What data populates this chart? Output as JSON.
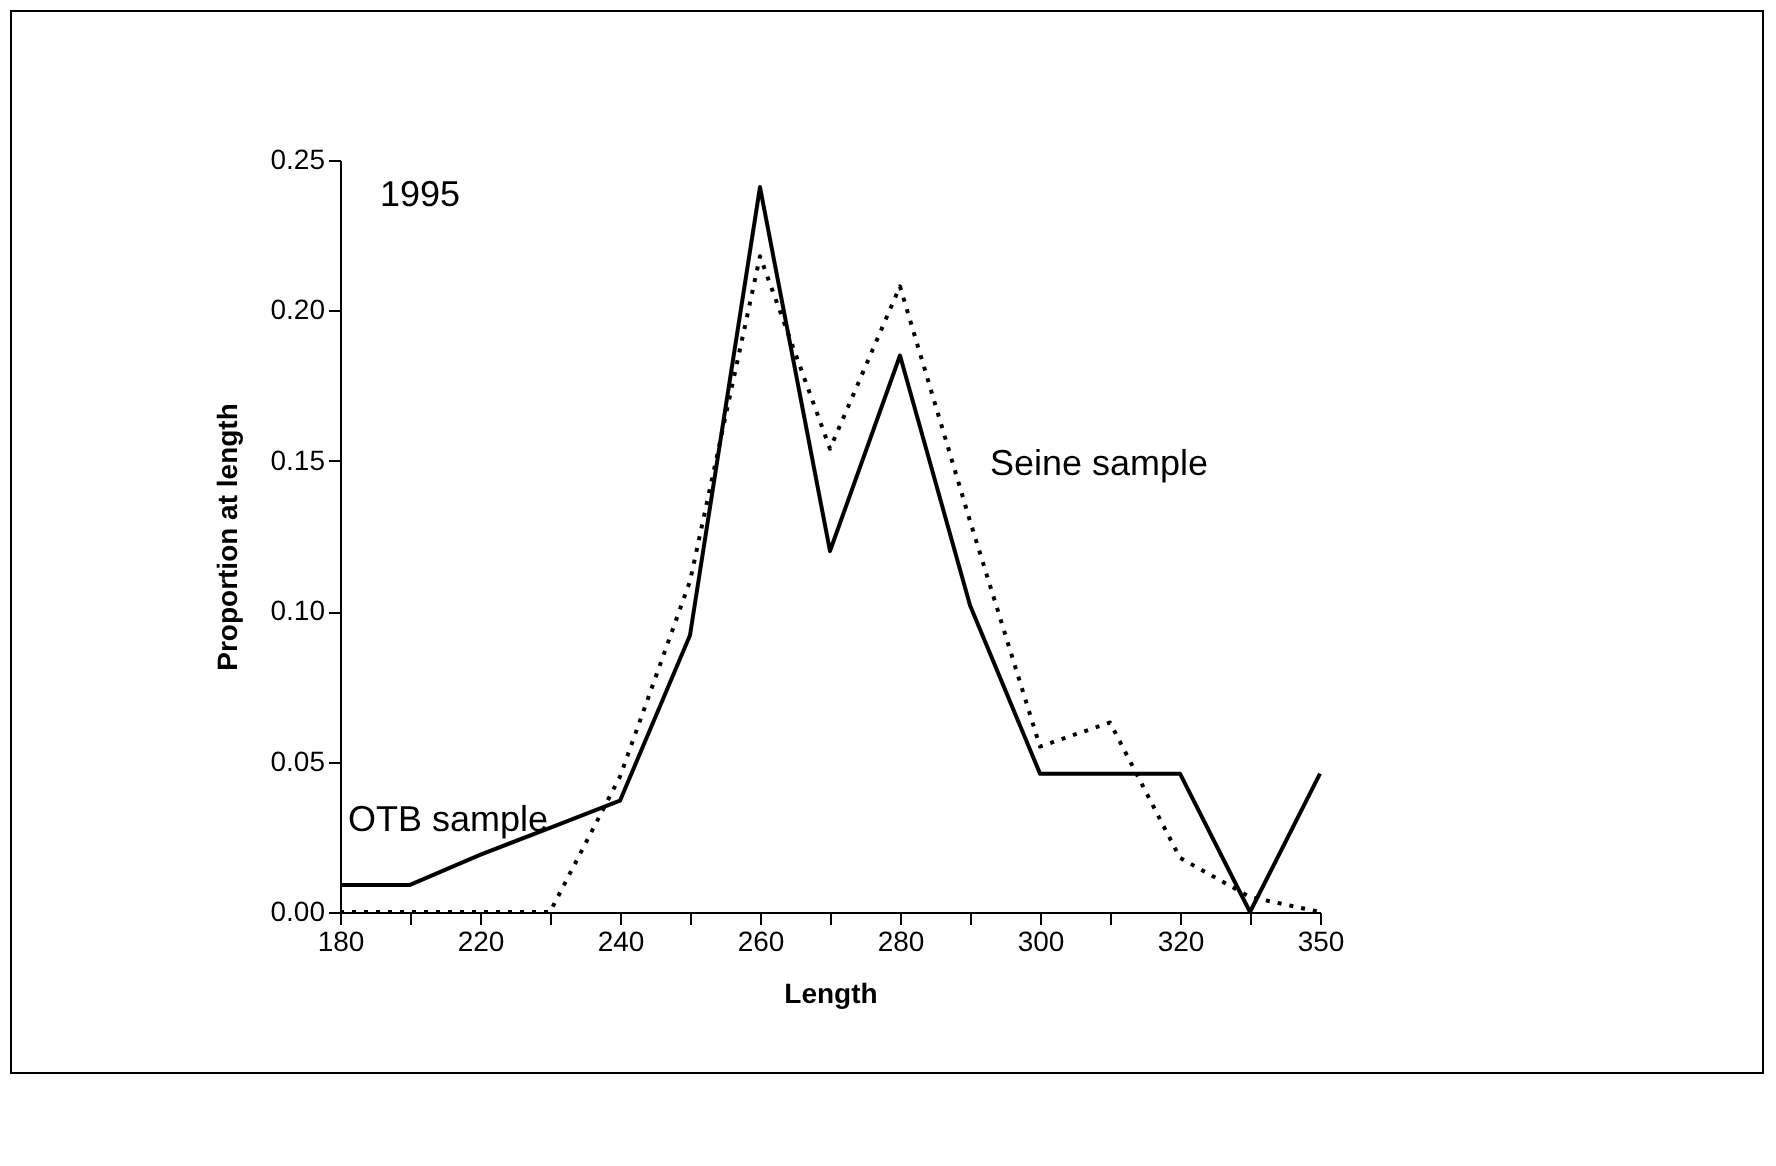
{
  "chart_data": {
    "type": "line",
    "xlabel": "Length",
    "ylabel": "Proportion at length",
    "annotations": [
      "1995"
    ],
    "categories": [
      "180",
      null,
      "220",
      null,
      "240",
      null,
      "260",
      null,
      "280",
      null,
      "300",
      null,
      "320",
      null,
      "350"
    ],
    "series": [
      {
        "name": "OTB sample",
        "color": "#000000",
        "line_style": "solid",
        "values": [
          0.009,
          0.009,
          0.019,
          0.028,
          0.037,
          0.092,
          0.241,
          0.12,
          0.185,
          0.102,
          0.046,
          0.046,
          0.046,
          0.0,
          0.046
        ]
      },
      {
        "name": "Seine sample",
        "color": "#000000",
        "line_style": "dotted",
        "values": [
          0.0,
          0.0,
          0.0,
          0.0,
          0.045,
          0.11,
          0.218,
          0.154,
          0.208,
          0.13,
          0.055,
          0.063,
          0.018,
          0.005,
          0.0
        ]
      }
    ],
    "ylim": [
      0,
      0.25
    ],
    "yticks": [
      {
        "value": 0,
        "label": "0.00"
      },
      {
        "value": 0.05,
        "label": "0.05"
      },
      {
        "value": 0.1,
        "label": "0.10"
      },
      {
        "value": 0.15,
        "label": "0.15"
      },
      {
        "value": 0.2,
        "label": "0.20"
      },
      {
        "value": 0.25,
        "label": "0.25"
      }
    ],
    "marker": "none"
  }
}
